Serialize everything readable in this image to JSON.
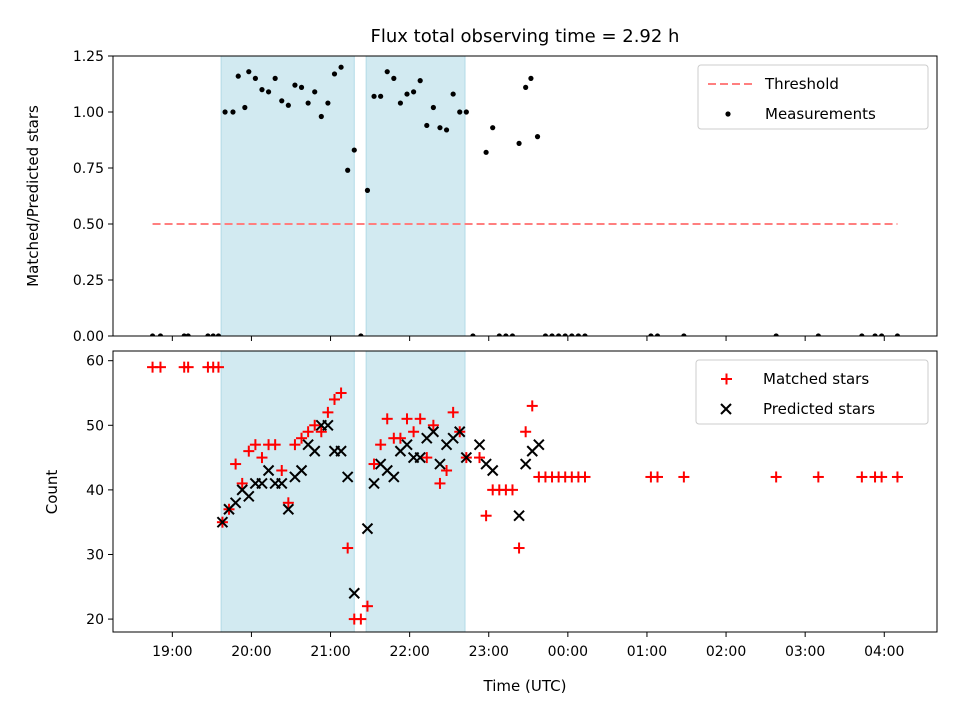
{
  "chart_data": [
    {
      "type": "scatter",
      "title": "Flux total observing time = 2.92 h",
      "xlabel": "",
      "ylabel": "Matched/Predicted stars",
      "ylim": [
        0,
        1.25
      ],
      "yticks": [
        "0.00",
        "0.25",
        "0.50",
        "0.75",
        "1.00",
        "1.25"
      ],
      "xlim": [
        "18:15",
        "04:40"
      ],
      "legend": {
        "position": "top-right",
        "entries": [
          "Threshold",
          "Measurements"
        ]
      },
      "shaded_intervals": [
        [
          "19:37",
          "21:18"
        ],
        [
          "21:27",
          "22:42"
        ]
      ],
      "shade_color": "#add8e6",
      "series": [
        {
          "name": "Threshold",
          "kind": "dashed-line",
          "color": "#ff7f7f",
          "points": [
            [
              "18:45",
              0.5
            ],
            [
              "04:10",
              0.5
            ]
          ]
        },
        {
          "name": "Measurements",
          "kind": "dots",
          "color": "#000000",
          "points": [
            [
              "18:45",
              0
            ],
            [
              "18:51",
              0
            ],
            [
              "19:09",
              0
            ],
            [
              "19:12",
              0
            ],
            [
              "19:27",
              0
            ],
            [
              "19:31",
              0
            ],
            [
              "19:35",
              0
            ],
            [
              "19:40",
              1.0
            ],
            [
              "19:46",
              1.0
            ],
            [
              "19:50",
              1.16
            ],
            [
              "19:55",
              1.02
            ],
            [
              "19:58",
              1.18
            ],
            [
              "20:03",
              1.15
            ],
            [
              "20:08",
              1.1
            ],
            [
              "20:13",
              1.09
            ],
            [
              "20:18",
              1.15
            ],
            [
              "20:23",
              1.05
            ],
            [
              "20:28",
              1.03
            ],
            [
              "20:33",
              1.12
            ],
            [
              "20:38",
              1.11
            ],
            [
              "20:43",
              1.04
            ],
            [
              "20:48",
              1.09
            ],
            [
              "20:53",
              0.98
            ],
            [
              "20:58",
              1.04
            ],
            [
              "21:03",
              1.17
            ],
            [
              "21:08",
              1.2
            ],
            [
              "21:13",
              0.74
            ],
            [
              "21:18",
              0.83
            ],
            [
              "21:23",
              0.0
            ],
            [
              "21:28",
              0.65
            ],
            [
              "21:33",
              1.07
            ],
            [
              "21:38",
              1.07
            ],
            [
              "21:43",
              1.18
            ],
            [
              "21:48",
              1.15
            ],
            [
              "21:53",
              1.04
            ],
            [
              "21:58",
              1.08
            ],
            [
              "22:03",
              1.09
            ],
            [
              "22:08",
              1.14
            ],
            [
              "22:13",
              0.94
            ],
            [
              "22:18",
              1.02
            ],
            [
              "22:23",
              0.93
            ],
            [
              "22:28",
              0.92
            ],
            [
              "22:33",
              1.08
            ],
            [
              "22:38",
              1.0
            ],
            [
              "22:43",
              1.0
            ],
            [
              "22:48",
              0
            ],
            [
              "22:58",
              0.82
            ],
            [
              "23:03",
              0.93
            ],
            [
              "23:08",
              0
            ],
            [
              "23:13",
              0
            ],
            [
              "23:18",
              0
            ],
            [
              "23:23",
              0.86
            ],
            [
              "23:28",
              1.11
            ],
            [
              "23:32",
              1.15
            ],
            [
              "23:37",
              0.89
            ],
            [
              "23:43",
              0
            ],
            [
              "23:48",
              0
            ],
            [
              "23:53",
              0
            ],
            [
              "23:58",
              0
            ],
            [
              "00:03",
              0
            ],
            [
              "00:08",
              0
            ],
            [
              "00:13",
              0
            ],
            [
              "01:03",
              0
            ],
            [
              "01:08",
              0
            ],
            [
              "01:28",
              0
            ],
            [
              "02:38",
              0
            ],
            [
              "03:10",
              0
            ],
            [
              "03:43",
              0
            ],
            [
              "03:53",
              0
            ],
            [
              "03:58",
              0
            ],
            [
              "04:10",
              0
            ]
          ]
        }
      ]
    },
    {
      "type": "scatter",
      "title": "",
      "xlabel": "Time (UTC)",
      "ylabel": "Count",
      "ylim": [
        18,
        61.5
      ],
      "yticks": [
        "20",
        "30",
        "40",
        "50",
        "60"
      ],
      "xticks": [
        "19:00",
        "20:00",
        "21:00",
        "22:00",
        "23:00",
        "00:00",
        "01:00",
        "02:00",
        "03:00",
        "04:00"
      ],
      "xlim": [
        "18:15",
        "04:40"
      ],
      "legend": {
        "position": "top-right",
        "entries": [
          "Matched stars",
          "Predicted stars"
        ]
      },
      "shaded_intervals": [
        [
          "19:37",
          "21:18"
        ],
        [
          "21:27",
          "22:42"
        ]
      ],
      "shade_color": "#add8e6",
      "series": [
        {
          "name": "Matched stars",
          "kind": "plus",
          "color": "#ff0000",
          "points": [
            [
              "18:45",
              59
            ],
            [
              "18:51",
              59
            ],
            [
              "19:09",
              59
            ],
            [
              "19:12",
              59
            ],
            [
              "19:27",
              59
            ],
            [
              "19:31",
              59
            ],
            [
              "19:35",
              59
            ],
            [
              "19:38",
              35
            ],
            [
              "19:43",
              37
            ],
            [
              "19:48",
              44
            ],
            [
              "19:53",
              41
            ],
            [
              "19:58",
              46
            ],
            [
              "20:03",
              47
            ],
            [
              "20:08",
              45
            ],
            [
              "20:13",
              47
            ],
            [
              "20:18",
              47
            ],
            [
              "20:23",
              43
            ],
            [
              "20:28",
              38
            ],
            [
              "20:33",
              47
            ],
            [
              "20:38",
              48
            ],
            [
              "20:43",
              49
            ],
            [
              "20:48",
              50
            ],
            [
              "20:53",
              49
            ],
            [
              "20:58",
              52
            ],
            [
              "21:03",
              54
            ],
            [
              "21:08",
              55
            ],
            [
              "21:13",
              31
            ],
            [
              "21:18",
              20
            ],
            [
              "21:23",
              20
            ],
            [
              "21:28",
              22
            ],
            [
              "21:33",
              44
            ],
            [
              "21:38",
              47
            ],
            [
              "21:43",
              51
            ],
            [
              "21:48",
              48
            ],
            [
              "21:53",
              48
            ],
            [
              "21:58",
              51
            ],
            [
              "22:03",
              49
            ],
            [
              "22:08",
              51
            ],
            [
              "22:13",
              45
            ],
            [
              "22:18",
              50
            ],
            [
              "22:23",
              41
            ],
            [
              "22:28",
              43
            ],
            [
              "22:33",
              52
            ],
            [
              "22:38",
              49
            ],
            [
              "22:43",
              45
            ],
            [
              "22:53",
              45
            ],
            [
              "22:58",
              36
            ],
            [
              "23:03",
              40
            ],
            [
              "23:08",
              40
            ],
            [
              "23:13",
              40
            ],
            [
              "23:18",
              40
            ],
            [
              "23:23",
              31
            ],
            [
              "23:28",
              49
            ],
            [
              "23:33",
              53
            ],
            [
              "23:38",
              42
            ],
            [
              "23:43",
              42
            ],
            [
              "23:48",
              42
            ],
            [
              "23:53",
              42
            ],
            [
              "23:58",
              42
            ],
            [
              "00:03",
              42
            ],
            [
              "00:08",
              42
            ],
            [
              "00:13",
              42
            ],
            [
              "01:03",
              42
            ],
            [
              "01:08",
              42
            ],
            [
              "01:28",
              42
            ],
            [
              "02:38",
              42
            ],
            [
              "03:10",
              42
            ],
            [
              "03:43",
              42
            ],
            [
              "03:53",
              42
            ],
            [
              "03:58",
              42
            ],
            [
              "04:10",
              42
            ]
          ]
        },
        {
          "name": "Predicted stars",
          "kind": "x",
          "color": "#000000",
          "points": [
            [
              "19:38",
              35
            ],
            [
              "19:43",
              37
            ],
            [
              "19:48",
              38
            ],
            [
              "19:53",
              40
            ],
            [
              "19:58",
              39
            ],
            [
              "20:03",
              41
            ],
            [
              "20:08",
              41
            ],
            [
              "20:13",
              43
            ],
            [
              "20:18",
              41
            ],
            [
              "20:23",
              41
            ],
            [
              "20:28",
              37
            ],
            [
              "20:33",
              42
            ],
            [
              "20:38",
              43
            ],
            [
              "20:43",
              47
            ],
            [
              "20:48",
              46
            ],
            [
              "20:53",
              50
            ],
            [
              "20:58",
              50
            ],
            [
              "21:03",
              46
            ],
            [
              "21:08",
              46
            ],
            [
              "21:13",
              42
            ],
            [
              "21:18",
              24
            ],
            [
              "21:28",
              34
            ],
            [
              "21:33",
              41
            ],
            [
              "21:38",
              44
            ],
            [
              "21:43",
              43
            ],
            [
              "21:48",
              42
            ],
            [
              "21:53",
              46
            ],
            [
              "21:58",
              47
            ],
            [
              "22:03",
              45
            ],
            [
              "22:08",
              45
            ],
            [
              "22:13",
              48
            ],
            [
              "22:18",
              49
            ],
            [
              "22:23",
              44
            ],
            [
              "22:28",
              47
            ],
            [
              "22:33",
              48
            ],
            [
              "22:38",
              49
            ],
            [
              "22:43",
              45
            ],
            [
              "22:53",
              47
            ],
            [
              "22:58",
              44
            ],
            [
              "23:03",
              43
            ],
            [
              "23:23",
              36
            ],
            [
              "23:28",
              44
            ],
            [
              "23:33",
              46
            ],
            [
              "23:38",
              47
            ]
          ]
        }
      ]
    }
  ]
}
